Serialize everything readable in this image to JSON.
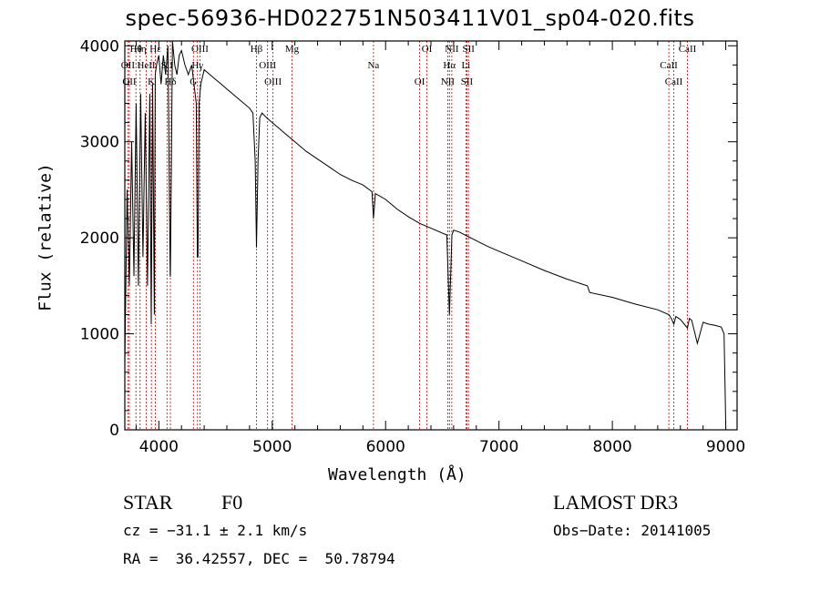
{
  "chart_data": {
    "type": "line",
    "title": "spec-56936-HD022751N503411V01_sp04-020.fits",
    "xlabel": "Wavelength (Å)",
    "ylabel": "Flux (relative)",
    "xlim": [
      3700,
      9100
    ],
    "ylim": [
      0,
      4050
    ],
    "xticks": [
      4000,
      5000,
      6000,
      7000,
      8000,
      9000
    ],
    "yticks": [
      0,
      1000,
      2000,
      3000,
      4000
    ],
    "series": [
      {
        "name": "spectrum",
        "x": [
          3700,
          3720,
          3740,
          3760,
          3780,
          3800,
          3820,
          3840,
          3860,
          3880,
          3900,
          3920,
          3933,
          3945,
          3960,
          3968,
          3980,
          4000,
          4020,
          4040,
          4060,
          4080,
          4100,
          4102,
          4120,
          4140,
          4160,
          4180,
          4200,
          4230,
          4260,
          4290,
          4310,
          4330,
          4340,
          4345,
          4355,
          4370,
          4400,
          4450,
          4500,
          4550,
          4600,
          4650,
          4700,
          4750,
          4800,
          4830,
          4850,
          4861,
          4875,
          4890,
          4910,
          4950,
          5000,
          5050,
          5100,
          5150,
          5200,
          5300,
          5400,
          5500,
          5600,
          5700,
          5800,
          5880,
          5893,
          5910,
          6000,
          6100,
          6200,
          6300,
          6400,
          6500,
          6540,
          6563,
          6585,
          6600,
          6650,
          6700,
          6800,
          6900,
          7000,
          7200,
          7400,
          7600,
          7780,
          7800,
          8000,
          8200,
          8400,
          8498,
          8520,
          8542,
          8560,
          8600,
          8662,
          8680,
          8700,
          8750,
          8800,
          8850,
          8900,
          8960,
          8985,
          8995,
          9000
        ],
        "values": [
          700,
          2500,
          1500,
          3000,
          1600,
          3400,
          1500,
          3500,
          1800,
          3300,
          1500,
          3500,
          1100,
          3600,
          1200,
          3700,
          3800,
          3900,
          3600,
          3900,
          3700,
          4000,
          1600,
          1600,
          4050,
          3800,
          3700,
          3900,
          3950,
          3800,
          3700,
          3800,
          3600,
          3400,
          1800,
          1800,
          3400,
          3600,
          3750,
          3700,
          3650,
          3600,
          3550,
          3500,
          3450,
          3400,
          3350,
          3300,
          2800,
          1900,
          2800,
          3250,
          3300,
          3250,
          3200,
          3150,
          3100,
          3050,
          3000,
          2900,
          2820,
          2740,
          2660,
          2600,
          2550,
          2480,
          2200,
          2460,
          2400,
          2300,
          2220,
          2150,
          2100,
          2050,
          2030,
          1200,
          2030,
          2080,
          2060,
          2030,
          1970,
          1910,
          1860,
          1760,
          1660,
          1570,
          1500,
          1430,
          1380,
          1310,
          1250,
          1200,
          1160,
          1100,
          1180,
          1150,
          1060,
          1160,
          1140,
          900,
          1120,
          1100,
          1090,
          1070,
          1000,
          400,
          0
        ]
      }
    ],
    "lines": [
      {
        "label": "Hθ",
        "x": 3798
      },
      {
        "label": "OII",
        "x": 3727
      },
      {
        "label": "OII",
        "x": 3740
      },
      {
        "label": "Hη",
        "x": 3835
      },
      {
        "label": "HeII",
        "x": 3889
      },
      {
        "label": "K",
        "x": 3934
      },
      {
        "label": "Hε",
        "x": 3970
      },
      {
        "label": "SII",
        "x": 4072
      },
      {
        "label": "Hδ",
        "x": 4102
      },
      {
        "label": "OIII",
        "x": 4363
      },
      {
        "label": "Hγ",
        "x": 4341
      },
      {
        "label": "G",
        "x": 4305
      },
      {
        "label": "Hβ",
        "x": 4861
      },
      {
        "label": "OIII",
        "x": 4959
      },
      {
        "label": "OIII",
        "x": 5007
      },
      {
        "label": "Mg",
        "x": 5175
      },
      {
        "label": "Na",
        "x": 5893
      },
      {
        "label": "OI",
        "x": 6300
      },
      {
        "label": "OI",
        "x": 6364
      },
      {
        "label": "Hα",
        "x": 6563
      },
      {
        "label": "NII",
        "x": 6548
      },
      {
        "label": "NII",
        "x": 6584
      },
      {
        "label": "Li",
        "x": 6708
      },
      {
        "label": "SII",
        "x": 6717
      },
      {
        "label": "SII",
        "x": 6731
      },
      {
        "label": "CaII",
        "x": 8498
      },
      {
        "label": "CaII",
        "x": 8542
      },
      {
        "label": "CaII",
        "x": 8662
      }
    ]
  },
  "info": {
    "object": "STAR",
    "subclass": "F0",
    "survey": "LAMOST DR3",
    "cz": "cz = −31.1 ± 2.1 km/s",
    "obs_date": "Obs−Date: 20141005",
    "coords": "RA =  36.42557, DEC =  50.78794"
  },
  "colors": {
    "line_marker": "#cc0000",
    "spectrum": "#000000"
  }
}
